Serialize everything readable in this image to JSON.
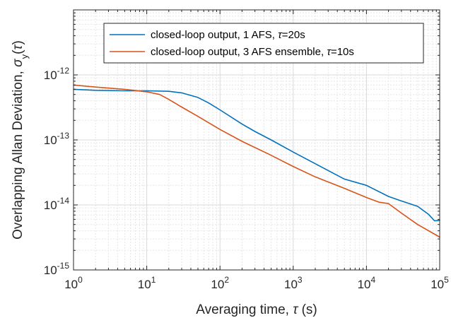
{
  "chart_data": {
    "type": "line",
    "xscale": "log",
    "yscale": "log",
    "xlim": [
      1,
      100000
    ],
    "ylim": [
      1e-15,
      1e-11
    ],
    "grid": true,
    "minor_grid": true,
    "legend_position": "top-right",
    "xlabel": {
      "prefix": "Averaging time, ",
      "symbol": "τ",
      "suffix": " (s)"
    },
    "ylabel": {
      "prefix": "Overlapping Allan Deviation, ",
      "symbol": "σ",
      "sub": "y",
      "arg_open": "(",
      "arg": "τ",
      "arg_close": ")"
    },
    "x_ticks": [
      {
        "value": 1,
        "base": "10",
        "exp": "0"
      },
      {
        "value": 10,
        "base": "10",
        "exp": "1"
      },
      {
        "value": 100,
        "base": "10",
        "exp": "2"
      },
      {
        "value": 1000,
        "base": "10",
        "exp": "3"
      },
      {
        "value": 10000,
        "base": "10",
        "exp": "4"
      },
      {
        "value": 100000,
        "base": "10",
        "exp": "5"
      }
    ],
    "y_ticks": [
      {
        "value": 1e-15,
        "base": "10",
        "exp": "-15"
      },
      {
        "value": 1e-14,
        "base": "10",
        "exp": "-14"
      },
      {
        "value": 1e-13,
        "base": "10",
        "exp": "-13"
      },
      {
        "value": 1e-12,
        "base": "10",
        "exp": "-12"
      }
    ],
    "series": [
      {
        "name": "closed-loop output, 1 AFS, τ=20s",
        "name_parts": {
          "pre": "closed-loop output, 1 AFS, ",
          "symbol": "τ",
          "post": "=20s"
        },
        "color": "#0072BD",
        "points": [
          [
            1,
            6e-13
          ],
          [
            2,
            5.8e-13
          ],
          [
            5,
            5.7e-13
          ],
          [
            10,
            5.7e-13
          ],
          [
            20,
            5.6e-13
          ],
          [
            30,
            5.3e-13
          ],
          [
            50,
            4.5e-13
          ],
          [
            70,
            3.7e-13
          ],
          [
            100,
            2.9e-13
          ],
          [
            200,
            1.75e-13
          ],
          [
            300,
            1.35e-13
          ],
          [
            500,
            1e-13
          ],
          [
            1000,
            6.5e-14
          ],
          [
            2000,
            4.3e-14
          ],
          [
            5000,
            2.5e-14
          ],
          [
            10000,
            2e-14
          ],
          [
            20000,
            1.35e-14
          ],
          [
            30000,
            1.15e-14
          ],
          [
            50000,
            9.5e-15
          ],
          [
            70000,
            7.2e-15
          ],
          [
            85000,
            5.7e-15
          ],
          [
            100000,
            5.8e-15
          ]
        ]
      },
      {
        "name": "closed-loop output, 3 AFS ensemble, τ=10s",
        "name_parts": {
          "pre": "closed-loop output, 3 AFS ensemble, ",
          "symbol": "τ",
          "post": "=10s"
        },
        "color": "#D95319",
        "points": [
          [
            1,
            7e-13
          ],
          [
            2,
            6.5e-13
          ],
          [
            5,
            6e-13
          ],
          [
            10,
            5.5e-13
          ],
          [
            15,
            5e-13
          ],
          [
            20,
            4.2e-13
          ],
          [
            30,
            3.2e-13
          ],
          [
            50,
            2.3e-13
          ],
          [
            100,
            1.45e-13
          ],
          [
            200,
            9.5e-14
          ],
          [
            500,
            5.8e-14
          ],
          [
            1000,
            3.9e-14
          ],
          [
            2000,
            2.7e-14
          ],
          [
            5000,
            1.8e-14
          ],
          [
            10000,
            1.3e-14
          ],
          [
            15000,
            1.1e-14
          ],
          [
            20000,
            1.05e-14
          ],
          [
            30000,
            7.5e-15
          ],
          [
            50000,
            5e-15
          ],
          [
            100000,
            3.2e-15
          ]
        ]
      }
    ]
  }
}
